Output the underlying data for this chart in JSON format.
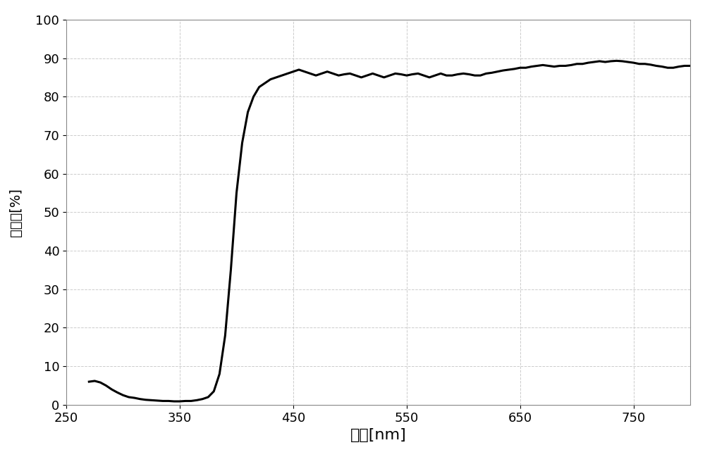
{
  "xlabel": "波長[nm]",
  "ylabel": "透射率[%]",
  "xlim": [
    250,
    800
  ],
  "ylim": [
    0,
    100
  ],
  "xticks": [
    250,
    350,
    450,
    550,
    650,
    750
  ],
  "yticks": [
    0,
    10,
    20,
    30,
    40,
    50,
    60,
    70,
    80,
    90,
    100
  ],
  "grid_color": "#cccccc",
  "line_color": "#000000",
  "line_width": 2.2,
  "background_color": "#ffffff",
  "xlabel_fontsize": 16,
  "ylabel_fontsize": 14,
  "tick_fontsize": 13,
  "curve_points": {
    "x": [
      270,
      275,
      280,
      285,
      290,
      295,
      300,
      305,
      310,
      315,
      320,
      325,
      330,
      335,
      340,
      345,
      350,
      355,
      360,
      365,
      370,
      375,
      380,
      385,
      390,
      395,
      400,
      405,
      410,
      415,
      420,
      425,
      430,
      435,
      440,
      445,
      450,
      455,
      460,
      465,
      470,
      475,
      480,
      485,
      490,
      495,
      500,
      505,
      510,
      515,
      520,
      525,
      530,
      535,
      540,
      545,
      550,
      555,
      560,
      565,
      570,
      575,
      580,
      585,
      590,
      595,
      600,
      605,
      610,
      615,
      620,
      625,
      630,
      635,
      640,
      645,
      650,
      655,
      660,
      665,
      670,
      675,
      680,
      685,
      690,
      695,
      700,
      705,
      710,
      715,
      720,
      725,
      730,
      735,
      740,
      745,
      750,
      755,
      760,
      765,
      770,
      775,
      780,
      785,
      790,
      795,
      800
    ],
    "y": [
      6.0,
      6.2,
      5.8,
      5.0,
      4.0,
      3.2,
      2.5,
      2.0,
      1.8,
      1.5,
      1.3,
      1.2,
      1.1,
      1.0,
      1.0,
      0.9,
      0.9,
      1.0,
      1.0,
      1.2,
      1.5,
      2.0,
      3.5,
      8.0,
      18.0,
      35.0,
      55.0,
      68.0,
      76.0,
      80.0,
      82.5,
      83.5,
      84.5,
      85.0,
      85.5,
      86.0,
      86.5,
      87.0,
      86.5,
      86.0,
      85.5,
      86.0,
      86.5,
      86.0,
      85.5,
      85.8,
      86.0,
      85.5,
      85.0,
      85.5,
      86.0,
      85.5,
      85.0,
      85.5,
      86.0,
      85.8,
      85.5,
      85.8,
      86.0,
      85.5,
      85.0,
      85.5,
      86.0,
      85.5,
      85.5,
      85.8,
      86.0,
      85.8,
      85.5,
      85.5,
      86.0,
      86.2,
      86.5,
      86.8,
      87.0,
      87.2,
      87.5,
      87.5,
      87.8,
      88.0,
      88.2,
      88.0,
      87.8,
      88.0,
      88.0,
      88.2,
      88.5,
      88.5,
      88.8,
      89.0,
      89.2,
      89.0,
      89.2,
      89.3,
      89.2,
      89.0,
      88.8,
      88.5,
      88.5,
      88.3,
      88.0,
      87.8,
      87.5,
      87.5,
      87.8,
      88.0,
      88.0
    ]
  }
}
